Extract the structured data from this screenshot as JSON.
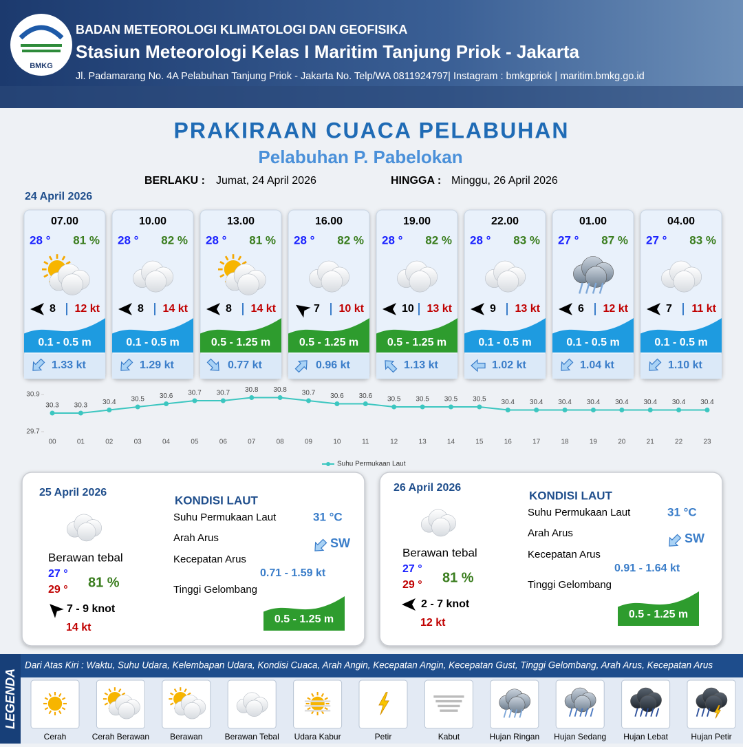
{
  "header": {
    "logo_text": "BMKG",
    "agency": "BADAN METEOROLOGI KLIMATOLOGI DAN GEOFISIKA",
    "station": "Stasiun Meteorologi Kelas I Maritim Tanjung Priok - Jakarta",
    "address": "Jl. Padamarang No. 4A Pelabuhan Tanjung Priok - Jakarta No. Telp/WA 0811924797| Instagram : bmkgpriok | maritim.bmkg.go.id"
  },
  "title": "PRAKIRAAN CUACA PELABUHAN",
  "subtitle": "Pelabuhan P. Pabelokan",
  "validity": {
    "from_label": "BERLAKU :",
    "from": "Jumat, 24 April 2026",
    "to_label": "HINGGA :",
    "to": "Minggu, 26 April 2026"
  },
  "day1": {
    "date": "24 April 2026",
    "cards": [
      {
        "time": "07.00",
        "temp": "28 °",
        "humidity": "81 %",
        "wind": "8",
        "gust": "12 kt",
        "wave": "0.1 - 0.5 m",
        "current": "1.33 kt"
      },
      {
        "time": "10.00",
        "temp": "28 °",
        "humidity": "82 %",
        "wind": "8",
        "gust": "14 kt",
        "wave": "0.1 - 0.5 m",
        "current": "1.29 kt"
      },
      {
        "time": "13.00",
        "temp": "28 °",
        "humidity": "81 %",
        "wind": "8",
        "gust": "14 kt",
        "wave": "0.5 - 1.25 m",
        "current": "0.77 kt"
      },
      {
        "time": "16.00",
        "temp": "28 °",
        "humidity": "82 %",
        "wind": "7",
        "gust": "10 kt",
        "wave": "0.5 - 1.25 m",
        "current": "0.96 kt"
      },
      {
        "time": "19.00",
        "temp": "28 °",
        "humidity": "82 %",
        "wind": "10",
        "gust": "13 kt",
        "wave": "0.5 - 1.25 m",
        "current": "1.13 kt"
      },
      {
        "time": "22.00",
        "temp": "28 °",
        "humidity": "83 %",
        "wind": "9",
        "gust": "13 kt",
        "wave": "0.1 - 0.5 m",
        "current": "1.02 kt"
      },
      {
        "time": "01.00",
        "temp": "27 °",
        "humidity": "87 %",
        "wind": "6",
        "gust": "12 kt",
        "wave": "0.1 - 0.5 m",
        "current": "1.04 kt"
      },
      {
        "time": "04.00",
        "temp": "27 °",
        "humidity": "83 %",
        "wind": "7",
        "gust": "11 kt",
        "wave": "0.1 - 0.5 m",
        "current": "1.10 kt"
      }
    ]
  },
  "chart_data": {
    "type": "line",
    "categories": [
      "00",
      "01",
      "02",
      "03",
      "04",
      "05",
      "06",
      "07",
      "08",
      "09",
      "10",
      "11",
      "12",
      "13",
      "14",
      "15",
      "16",
      "17",
      "18",
      "19",
      "20",
      "21",
      "22",
      "23"
    ],
    "series": [
      {
        "name": "Suhu Permukaan Laut",
        "color": "#3cc6c0",
        "values": [
          30.3,
          30.3,
          30.4,
          30.5,
          30.6,
          30.7,
          30.7,
          30.8,
          30.8,
          30.7,
          30.6,
          30.6,
          30.5,
          30.5,
          30.5,
          30.5,
          30.4,
          30.4,
          30.4,
          30.4,
          30.4,
          30.4,
          30.4,
          30.4
        ]
      }
    ],
    "ylim": [
      29.7,
      30.9
    ],
    "yticks": [
      29.7,
      30.9
    ],
    "legend": "bottom"
  },
  "days": [
    {
      "date": "25 April 2026",
      "condition": "Berawan tebal",
      "temp_min": "27 °",
      "temp_max": "29 °",
      "humidity": "81 %",
      "wind": "7  - 9 knot",
      "gust": "14 kt",
      "sea_title": "KONDISI LAUT",
      "sst_label": "Suhu Permukaan Laut",
      "sst": "31 °C",
      "dir_label": "Arah Arus",
      "dir": "SW",
      "speed_label": "Kecepatan Arus",
      "speed": "0.71  - 1.59 kt",
      "wave_label": "Tinggi Gelombang",
      "wave": "0.5 - 1.25 m"
    },
    {
      "date": "26 April 2026",
      "condition": "Berawan tebal",
      "temp_min": "27 °",
      "temp_max": "29 °",
      "humidity": "81 %",
      "wind": "2  - 7 knot",
      "gust": "12 kt",
      "sea_title": "KONDISI LAUT",
      "sst_label": "Suhu Permukaan Laut",
      "sst": "31 °C",
      "dir_label": "Arah Arus",
      "dir": "SW",
      "speed_label": "Kecepatan Arus",
      "speed": "0.91  - 1.64 kt",
      "wave_label": "Tinggi Gelombang",
      "wave": "0.5 - 1.25 m"
    }
  ],
  "legend": {
    "title": "LEGENDA",
    "description": "Dari Atas Kiri : Waktu, Suhu Udara, Kelembapan Udara, Kondisi Cuaca, Arah Angin, Kecepatan Angin, Kecepatan Gust, Tinggi Gelombang, Arah Arus, Kecepatan Arus",
    "items": [
      "Cerah",
      "Cerah Berawan",
      "Berawan",
      "Berawan Tebal",
      "Udara Kabur",
      "Petir",
      "Kabut",
      "Hujan Ringan",
      "Hujan Sedang",
      "Hujan Lebat",
      "Hujan Petir"
    ]
  }
}
